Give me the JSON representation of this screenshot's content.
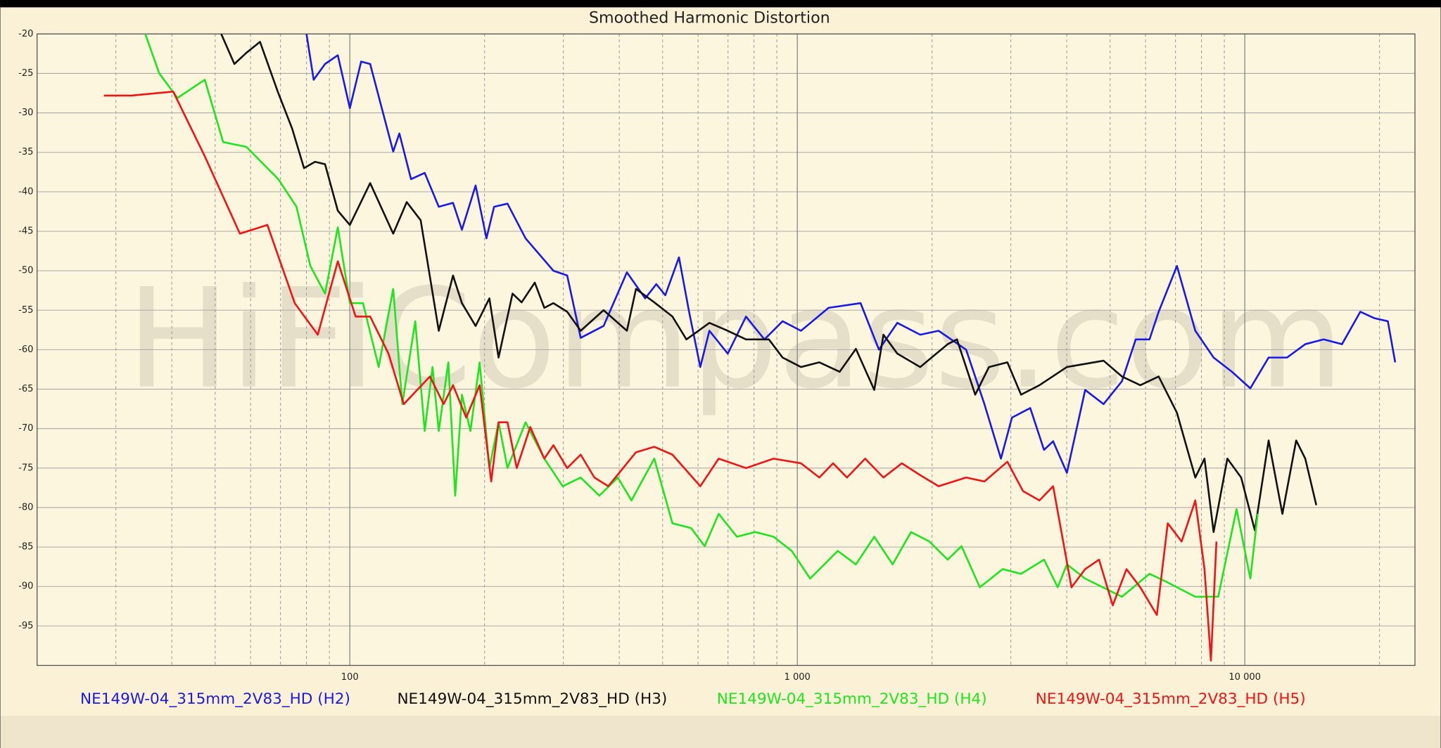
{
  "chart_data": {
    "type": "line",
    "title": "Smoothed Harmonic Distortion",
    "watermark": "HiFiCompass.com",
    "xscale": "log",
    "grid": true,
    "legend": "bottom",
    "xlim": [
      20,
      24000
    ],
    "ylim": [
      -100,
      -20
    ],
    "xticks": [
      {
        "value": 100,
        "label": "100"
      },
      {
        "value": 1000,
        "label": "1 000"
      },
      {
        "value": 10000,
        "label": "10 000"
      }
    ],
    "xminor": [
      30,
      40,
      50,
      60,
      70,
      80,
      90,
      200,
      300,
      400,
      500,
      600,
      700,
      800,
      900,
      2000,
      3000,
      4000,
      5000,
      6000,
      7000,
      8000,
      9000,
      20000
    ],
    "yticks": [
      -20,
      -25,
      -30,
      -35,
      -40,
      -45,
      -50,
      -55,
      -60,
      -65,
      -70,
      -75,
      -80,
      -85,
      -90,
      -95
    ],
    "series": [
      {
        "name": "NE149W-04_315mm_2V83_HD (H2)",
        "color": "#1a1ae6",
        "x": [
          80,
          83,
          88,
          94,
          100,
          106,
          111,
          125,
          129,
          137,
          147,
          158,
          170,
          178,
          191,
          202,
          210,
          225,
          247,
          285,
          306,
          328,
          369,
          416,
          457,
          484,
          507,
          544,
          573,
          607,
          636,
          699,
          768,
          844,
          927,
          1019,
          1174,
          1385,
          1522,
          1673,
          1882,
          2068,
          2383,
          2618,
          2851,
          3017,
          3315,
          3558,
          3730,
          4004,
          4399,
          4835,
          5314,
          5703,
          6122,
          6418,
          7054,
          7751,
          8518,
          9361,
          10287,
          11305,
          12424,
          13651,
          15003,
          16487,
          18118,
          19448,
          20877,
          21682
        ],
        "values": [
          -20,
          -25.8,
          -23.8,
          -22.7,
          -29.4,
          -23.5,
          -23.8,
          -34.9,
          -32.6,
          -38.4,
          -37.6,
          -41.9,
          -41.4,
          -44.8,
          -39.2,
          -45.9,
          -41.9,
          -41.5,
          -45.9,
          -50,
          -50.6,
          -58.5,
          -57,
          -50.2,
          -53.5,
          -51.7,
          -53.1,
          -48.3,
          -55.2,
          -62.2,
          -57.6,
          -60.5,
          -55.8,
          -58.7,
          -56.4,
          -57.6,
          -54.7,
          -54.1,
          -60,
          -56.6,
          -58.1,
          -57.6,
          -60,
          -66.9,
          -73.8,
          -68.6,
          -67.4,
          -72.7,
          -71.6,
          -75.6,
          -65.1,
          -66.9,
          -64,
          -58.7,
          -58.7,
          -55.2,
          -49.4,
          -57.6,
          -61,
          -62.8,
          -64.9,
          -61,
          -61,
          -59.3,
          -58.7,
          -59.3,
          -55.2,
          -56,
          -56.4,
          -61.6
        ]
      },
      {
        "name": "NE149W-04_315mm_2V83_HD (H3)",
        "color": "#111111",
        "x": [
          51.6,
          55.2,
          58.7,
          63,
          69,
          74.3,
          79,
          83.6,
          88,
          94,
          100,
          111,
          125,
          134,
          144,
          158,
          170,
          178,
          191,
          205,
          215,
          231,
          242,
          259,
          272,
          285,
          306,
          328,
          369,
          416,
          436,
          479,
          526,
          565,
          636,
          699,
          768,
          864,
          927,
          1019,
          1120,
          1243,
          1352,
          1486,
          1558,
          1673,
          1882,
          2168,
          2273,
          2498,
          2681,
          2947,
          3162,
          3475,
          4004,
          4835,
          5314,
          5840,
          6418,
          7054,
          7751,
          8125,
          8518,
          9141,
          9812,
          10532,
          11305,
          12134,
          13025,
          13651,
          14445
        ],
        "values": [
          -20,
          -23.8,
          -22.4,
          -21,
          -27.3,
          -32,
          -37,
          -36.2,
          -36.5,
          -42.4,
          -44.2,
          -38.9,
          -45.3,
          -41.3,
          -43.6,
          -57.6,
          -50.6,
          -54.1,
          -57,
          -53.5,
          -61,
          -52.9,
          -54,
          -51.5,
          -54.7,
          -54.1,
          -55.2,
          -57.6,
          -55,
          -57.6,
          -52.3,
          -54,
          -55.8,
          -58.7,
          -56.6,
          -57.6,
          -58.7,
          -58.7,
          -61,
          -62.2,
          -61.6,
          -62.8,
          -59.9,
          -65.1,
          -58.1,
          -60.5,
          -62.2,
          -59.3,
          -58.7,
          -65.7,
          -62.2,
          -61.6,
          -65.7,
          -64.5,
          -62.2,
          -61.4,
          -63.4,
          -64.5,
          -63.4,
          -68,
          -76.2,
          -73.8,
          -83.1,
          -73.8,
          -76.2,
          -82.9,
          -71.5,
          -80.8,
          -71.5,
          -73.8,
          -79.7
        ]
      },
      {
        "name": "NE149W-04_315mm_2V83_HD (H4)",
        "color": "#1ee61e",
        "x": [
          34.9,
          37.5,
          41.2,
          47.4,
          52.1,
          58.7,
          69.2,
          76,
          81.6,
          88,
          94,
          100,
          107,
          116,
          125,
          131,
          140,
          147,
          153,
          158,
          166,
          172,
          178,
          186,
          195,
          205,
          215,
          225,
          247,
          272,
          299,
          328,
          361,
          397,
          426,
          479,
          526,
          579,
          621,
          667,
          733,
          805,
          885,
          972,
          1068,
          1231,
          1352,
          1486,
          1633,
          1795,
          1973,
          2168,
          2328,
          2557,
          2877,
          3162,
          3558,
          3818,
          4004,
          4399,
          5314,
          6122,
          6728,
          7751,
          8721,
          9585,
          10287,
          10683
        ],
        "values": [
          -20,
          -25,
          -28.1,
          -25.8,
          -33.7,
          -34.3,
          -38.4,
          -41.9,
          -49.4,
          -52.9,
          -44.5,
          -54.1,
          -54.1,
          -62.2,
          -52.3,
          -66.9,
          -56.4,
          -70.3,
          -62.2,
          -70.3,
          -61.6,
          -78.5,
          -65.7,
          -70.3,
          -61.6,
          -75,
          -69.2,
          -75,
          -69.2,
          -73.8,
          -77.3,
          -76.2,
          -78.5,
          -76.2,
          -79.1,
          -73.8,
          -82,
          -82.6,
          -84.9,
          -80.8,
          -83.7,
          -83.1,
          -83.7,
          -85.5,
          -89,
          -85.5,
          -87.2,
          -83.7,
          -87.2,
          -83.1,
          -84.3,
          -86.6,
          -84.9,
          -90.1,
          -87.8,
          -88.4,
          -86.6,
          -90.1,
          -87.2,
          -89,
          -91.3,
          -88.4,
          -89.5,
          -91.3,
          -91.3,
          -80.2,
          -89,
          -80.8
        ]
      },
      {
        "name": "NE149W-04_315mm_2V83_HD (H5)",
        "color": "#f01414",
        "x": [
          28.2,
          32.5,
          40.3,
          47.4,
          56.8,
          65.4,
          75.3,
          84.8,
          94,
          103,
          111,
          122,
          132,
          151,
          162,
          170,
          182,
          195,
          207,
          215,
          225,
          236,
          253,
          272,
          285,
          306,
          328,
          352,
          378,
          436,
          479,
          526,
          607,
          667,
          768,
          885,
          1019,
          1120,
          1202,
          1291,
          1418,
          1558,
          1712,
          1882,
          2068,
          2383,
          2618,
          2947,
          3192,
          3475,
          3730,
          4099,
          4399,
          4723,
          5068,
          5441,
          5840,
          6358,
          6728,
          7223,
          7751,
          8125,
          8401,
          8642
        ],
        "values": [
          -27.8,
          -27.8,
          -27.3,
          -35.5,
          -45.3,
          -44.2,
          -54.1,
          -58.1,
          -48.8,
          -55.8,
          -55.8,
          -60.5,
          -66.9,
          -63.4,
          -66.9,
          -64.5,
          -68.6,
          -64.5,
          -76.7,
          -69.2,
          -69.2,
          -75,
          -69.8,
          -73.8,
          -72.1,
          -75,
          -73.3,
          -76.2,
          -77.3,
          -73,
          -72.3,
          -73.3,
          -77.3,
          -73.8,
          -75,
          -73.8,
          -74.4,
          -76.2,
          -74.4,
          -76.2,
          -73.8,
          -76.2,
          -74.4,
          -75.9,
          -77.3,
          -76.2,
          -76.7,
          -74.2,
          -77.9,
          -79.1,
          -77.3,
          -90.1,
          -87.8,
          -86.6,
          -92.4,
          -87.8,
          -90.1,
          -93.6,
          -82,
          -84.3,
          -79.1,
          -87.8,
          -99.4,
          -84.3
        ]
      }
    ]
  }
}
